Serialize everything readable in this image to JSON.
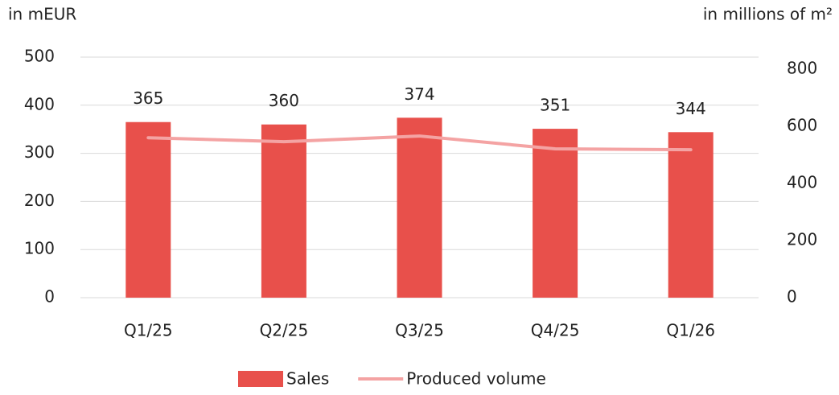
{
  "chart_data": {
    "type": "bar_line",
    "y_axis_label": "in mEUR",
    "y2_axis_label": "in millions of m²",
    "categories": [
      "Q1/25",
      "Q2/25",
      "Q3/25",
      "Q4/25",
      "Q1/26"
    ],
    "series": [
      {
        "name": "Sales",
        "type": "bar",
        "color": "#e8504b",
        "values": [
          365,
          360,
          374,
          351,
          344
        ]
      },
      {
        "name": "Produced volume",
        "type": "line",
        "axis": "y2",
        "color": "#f4a3a3",
        "values": [
          560,
          546,
          566,
          521,
          518
        ]
      }
    ],
    "ylim": [
      0,
      500
    ],
    "yticks": [
      0,
      100,
      200,
      300,
      400,
      500
    ],
    "y2lim": [
      0,
      800
    ],
    "y2ticks": [
      0,
      200,
      400,
      600,
      800
    ],
    "grid": true,
    "legend": "bottom"
  }
}
